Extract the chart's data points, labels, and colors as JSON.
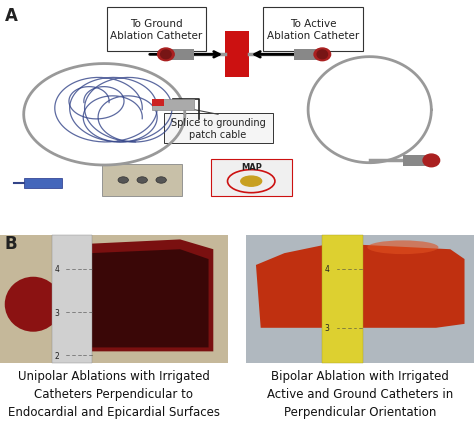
{
  "panel_A_label": "A",
  "panel_B_label": "B",
  "box1_text": "To Ground\nAblation Catheter",
  "box2_text": "To Active\nAblation Catheter",
  "splice_label": "Splice to grounding\npatch cable",
  "caption_left": "Unipolar Ablations with Irrigated\nCatheters Perpendicular to\nEndocardial and Epicardial Surfaces",
  "caption_right": "Bipolar Ablation with Irrigated\nActive and Ground Catheters in\nPerpendicular Orientation",
  "bg_color": "#ffffff",
  "box_bg": "#ffffff",
  "box_border": "#333333",
  "red_block_color": "#cc1111",
  "arrow_color": "#111111",
  "text_color": "#222222",
  "font_size_caption": 8.5,
  "font_size_box": 7.5,
  "font_size_splice": 7.0,
  "panel_label_size": 12,
  "left_photo_bg": "#c8b89a",
  "right_photo_bg": "#b0b8c0",
  "left_tissue_main": "#8b1515",
  "left_tissue_dark": "#2a0808",
  "left_tissue_lobe": "#8b1515",
  "right_tissue_color": "#cc4010",
  "ruler_color_left": "#d8d8d8",
  "ruler_color_right": "#e8d840",
  "gray_cable": "#999999",
  "blue_cable": "#334488",
  "red_tip": "#cc2222"
}
